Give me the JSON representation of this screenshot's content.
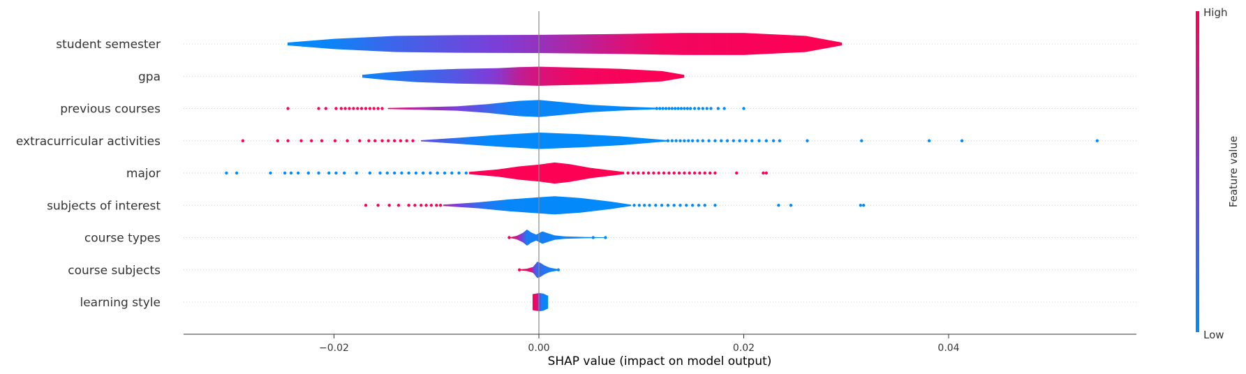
{
  "chart_data": {
    "type": "violin",
    "title": "",
    "xlabel": "SHAP value (impact on model output)",
    "ylabel": "",
    "xlim": [
      -0.035,
      0.059
    ],
    "x_ticks": [
      -0.02,
      0.0,
      0.02,
      0.04
    ],
    "x_tick_labels": [
      "−0.02",
      "0.00",
      "0.02",
      "0.04"
    ],
    "zero_line": 0.0,
    "colorbar": {
      "label": "Feature value",
      "high": "High",
      "low": "Low",
      "high_color": "#ff0052",
      "low_color": "#008bfb"
    },
    "grid": "dotted horizontal per feature",
    "features": [
      {
        "name": "student semester",
        "range": [
          -0.0245,
          0.0295
        ],
        "profile": [
          [
            -0.0245,
            0.1
          ],
          [
            -0.02,
            0.35
          ],
          [
            -0.014,
            0.55
          ],
          [
            -0.008,
            0.6
          ],
          [
            0,
            0.62
          ],
          [
            0.008,
            0.68
          ],
          [
            0.014,
            0.75
          ],
          [
            0.02,
            0.75
          ],
          [
            0.026,
            0.55
          ],
          [
            0.0295,
            0.1
          ]
        ],
        "colors": [
          [
            -0.0245,
            0
          ],
          [
            -0.02,
            0.05
          ],
          [
            -0.016,
            0.2
          ],
          [
            -0.012,
            0.3
          ],
          [
            -0.008,
            0.4
          ],
          [
            -0.004,
            0.5
          ],
          [
            0,
            0.6
          ],
          [
            0.004,
            0.72
          ],
          [
            0.008,
            0.85
          ],
          [
            0.012,
            0.95
          ],
          [
            0.0295,
            1
          ]
        ],
        "low_dots": [],
        "high_dots": []
      },
      {
        "name": "gpa",
        "range": [
          -0.0172,
          0.0141
        ],
        "profile": [
          [
            -0.0172,
            0.1
          ],
          [
            -0.015,
            0.25
          ],
          [
            -0.012,
            0.4
          ],
          [
            -0.008,
            0.5
          ],
          [
            -0.004,
            0.55
          ],
          [
            -0.002,
            0.62
          ],
          [
            0,
            0.65
          ],
          [
            0.004,
            0.58
          ],
          [
            0.008,
            0.5
          ],
          [
            0.012,
            0.35
          ],
          [
            0.0141,
            0.1
          ]
        ],
        "colors": [
          [
            -0.0172,
            0.05
          ],
          [
            -0.012,
            0.2
          ],
          [
            -0.008,
            0.35
          ],
          [
            -0.004,
            0.55
          ],
          [
            -0.002,
            0.75
          ],
          [
            0,
            0.85
          ],
          [
            0.004,
            0.95
          ],
          [
            0.0141,
            1
          ]
        ],
        "low_dots": [],
        "high_dots": []
      },
      {
        "name": "previous courses",
        "range": [
          -0.0147,
          0.0115
        ],
        "profile": [
          [
            -0.0147,
            0.04
          ],
          [
            -0.012,
            0.08
          ],
          [
            -0.008,
            0.15
          ],
          [
            -0.005,
            0.3
          ],
          [
            -0.002,
            0.52
          ],
          [
            0,
            0.58
          ],
          [
            0.002,
            0.45
          ],
          [
            0.005,
            0.25
          ],
          [
            0.008,
            0.14
          ],
          [
            0.0115,
            0.05
          ]
        ],
        "colors": [
          [
            -0.0147,
            0.92
          ],
          [
            -0.012,
            0.7
          ],
          [
            -0.009,
            0.55
          ],
          [
            -0.006,
            0.35
          ],
          [
            -0.004,
            0.15
          ],
          [
            -0.002,
            0.05
          ],
          [
            0.0115,
            0
          ]
        ],
        "low_dots": [
          0.0115,
          0.0118,
          0.0121,
          0.0124,
          0.0127,
          0.013,
          0.0133,
          0.0136,
          0.0139,
          0.0142,
          0.0145,
          0.0148,
          0.0152,
          0.0156,
          0.016,
          0.0164,
          0.0168,
          0.0175,
          0.0181,
          0.02
        ],
        "high_dots": [
          -0.0245,
          -0.0215,
          -0.0208,
          -0.0198,
          -0.0193,
          -0.0189,
          -0.0185,
          -0.0181,
          -0.0177,
          -0.0173,
          -0.0169,
          -0.0165,
          -0.0161,
          -0.0157,
          -0.0153
        ]
      },
      {
        "name": "extracurricular activities",
        "range": [
          -0.0115,
          0.0125
        ],
        "profile": [
          [
            -0.0115,
            0.04
          ],
          [
            -0.008,
            0.2
          ],
          [
            -0.004,
            0.4
          ],
          [
            0,
            0.56
          ],
          [
            0.004,
            0.45
          ],
          [
            0.008,
            0.3
          ],
          [
            0.0125,
            0.04
          ]
        ],
        "colors": [
          [
            -0.0115,
            0.4
          ],
          [
            -0.009,
            0.25
          ],
          [
            -0.007,
            0.1
          ],
          [
            -0.005,
            0.02
          ],
          [
            0.0125,
            0
          ]
        ],
        "low_dots": [
          0.0126,
          0.013,
          0.0134,
          0.0138,
          0.0142,
          0.0146,
          0.015,
          0.0155,
          0.016,
          0.0166,
          0.0172,
          0.0178,
          0.0184,
          0.019,
          0.0196,
          0.0202,
          0.0208,
          0.0215,
          0.0222,
          0.0229,
          0.0235,
          0.0262,
          0.0315,
          0.0381,
          0.0413,
          0.0545
        ],
        "high_dots": [
          -0.0289,
          -0.0255,
          -0.0245,
          -0.0232,
          -0.0222,
          -0.0212,
          -0.0199,
          -0.0187,
          -0.0175,
          -0.0166,
          -0.016,
          -0.0153,
          -0.0147,
          -0.0141,
          -0.0135,
          -0.0129,
          -0.0123
        ]
      },
      {
        "name": "major",
        "range": [
          -0.0068,
          0.0082
        ],
        "profile": [
          [
            -0.0068,
            0.08
          ],
          [
            -0.004,
            0.25
          ],
          [
            -0.002,
            0.45
          ],
          [
            0,
            0.58
          ],
          [
            0.0015,
            0.72
          ],
          [
            0.003,
            0.6
          ],
          [
            0.005,
            0.35
          ],
          [
            0.0082,
            0.08
          ]
        ],
        "colors": [
          [
            -0.0068,
            0.98
          ],
          [
            0.0082,
            1
          ]
        ],
        "low_dots": [
          -0.0305,
          -0.0295,
          -0.0262,
          -0.0248,
          -0.0242,
          -0.0235,
          -0.0225,
          -0.0215,
          -0.0205,
          -0.0198,
          -0.019,
          -0.0178,
          -0.0165,
          -0.0155,
          -0.0148,
          -0.0141,
          -0.0134,
          -0.0127,
          -0.012,
          -0.0113,
          -0.0106,
          -0.0099,
          -0.0092,
          -0.0085,
          -0.0078,
          -0.0071
        ],
        "high_dots": [
          0.0087,
          0.0092,
          0.0097,
          0.0102,
          0.0107,
          0.0112,
          0.0117,
          0.0122,
          0.0127,
          0.0132,
          0.0137,
          0.0142,
          0.0147,
          0.0152,
          0.0157,
          0.0162,
          0.0167,
          0.0172,
          0.0193,
          0.0219,
          0.0222
        ]
      },
      {
        "name": "subjects of interest",
        "range": [
          -0.0093,
          0.0089
        ],
        "profile": [
          [
            -0.0093,
            0.05
          ],
          [
            -0.006,
            0.2
          ],
          [
            -0.003,
            0.4
          ],
          [
            0,
            0.55
          ],
          [
            0.0015,
            0.62
          ],
          [
            0.004,
            0.5
          ],
          [
            0.007,
            0.25
          ],
          [
            0.0089,
            0.05
          ]
        ],
        "colors": [
          [
            -0.0093,
            0.7
          ],
          [
            -0.008,
            0.5
          ],
          [
            -0.0065,
            0.3
          ],
          [
            -0.005,
            0.12
          ],
          [
            -0.003,
            0.03
          ],
          [
            0.0089,
            0
          ]
        ],
        "low_dots": [
          0.0093,
          0.0098,
          0.0103,
          0.0108,
          0.0114,
          0.012,
          0.0126,
          0.0132,
          0.0138,
          0.0144,
          0.015,
          0.0156,
          0.0162,
          0.0172,
          0.0234,
          0.0246,
          0.0314,
          0.0317
        ],
        "high_dots": [
          -0.0169,
          -0.0157,
          -0.0146,
          -0.0137,
          -0.0127,
          -0.0121,
          -0.0115,
          -0.011,
          -0.0105,
          -0.01,
          -0.0096
        ]
      },
      {
        "name": "course types",
        "range": [
          -0.0028,
          0.0065
        ],
        "profile": [
          [
            -0.0028,
            0.03
          ],
          [
            -0.0022,
            0.12
          ],
          [
            -0.0016,
            0.32
          ],
          [
            -0.0012,
            0.55
          ],
          [
            -0.0008,
            0.35
          ],
          [
            -0.0003,
            0.2
          ],
          [
            0.0003,
            0.42
          ],
          [
            0.0009,
            0.28
          ],
          [
            0.0015,
            0.15
          ],
          [
            0.0025,
            0.08
          ],
          [
            0.0045,
            0.04
          ],
          [
            0.0065,
            0.02
          ]
        ],
        "colors": [
          [
            -0.0028,
            1
          ],
          [
            -0.0018,
            0.55
          ],
          [
            -0.0012,
            0.1
          ],
          [
            0.0065,
            0
          ]
        ],
        "low_dots": [
          0.0053,
          0.0065
        ],
        "high_dots": [
          -0.0029
        ]
      },
      {
        "name": "course subjects",
        "range": [
          -0.0018,
          0.0018
        ],
        "profile": [
          [
            -0.0018,
            0.04
          ],
          [
            -0.0012,
            0.08
          ],
          [
            -0.0006,
            0.2
          ],
          [
            -0.0002,
            0.55
          ],
          [
            0.0001,
            0.48
          ],
          [
            0.0005,
            0.3
          ],
          [
            0.001,
            0.15
          ],
          [
            0.0018,
            0.05
          ]
        ],
        "colors": [
          [
            -0.0018,
            1
          ],
          [
            -0.0008,
            0.85
          ],
          [
            -0.0003,
            0.25
          ],
          [
            0.0018,
            0
          ]
        ],
        "low_dots": [
          0.0019
        ],
        "high_dots": [
          -0.0019
        ]
      },
      {
        "name": "learning style",
        "range": [
          -0.0006,
          0.0008
        ],
        "profile": [
          [
            -0.0006,
            0.55
          ],
          [
            0,
            0.62
          ],
          [
            0.0004,
            0.58
          ],
          [
            0.0008,
            0.45
          ]
        ],
        "colors": [
          [
            -0.0006,
            1
          ],
          [
            -0.0002,
            0.85
          ],
          [
            0,
            0.5
          ],
          [
            0.0002,
            0.1
          ],
          [
            0.0008,
            0
          ]
        ],
        "low_dots": [],
        "high_dots": []
      }
    ]
  }
}
